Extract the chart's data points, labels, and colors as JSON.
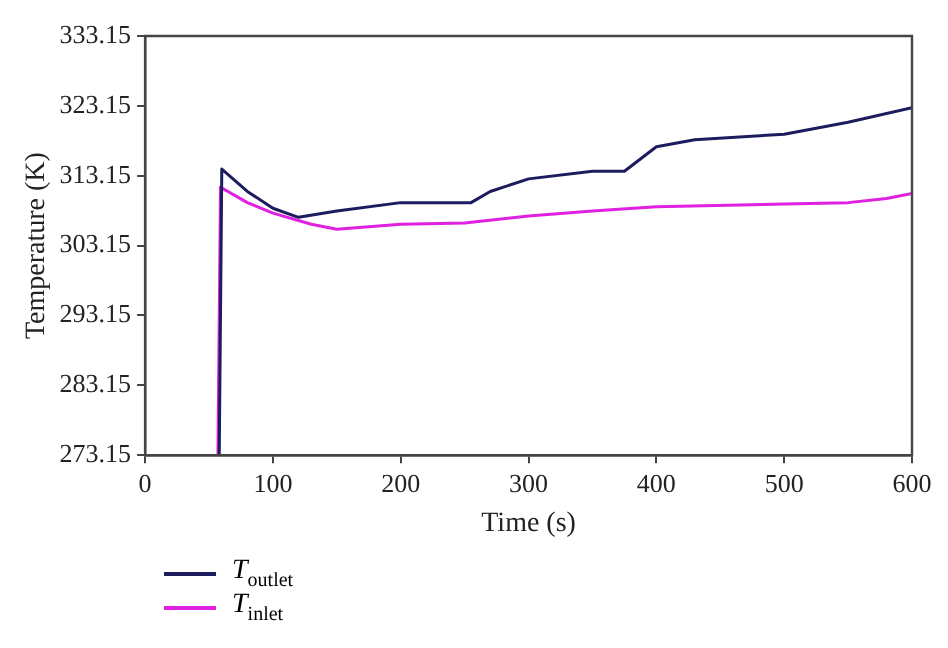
{
  "chart_data": {
    "type": "line",
    "xlabel": "Time (s)",
    "ylabel": "Temperature (K)",
    "xlim": [
      0,
      600
    ],
    "xticks": [
      0,
      100,
      200,
      300,
      400,
      500,
      600
    ],
    "ylim": [
      273.15,
      333.15
    ],
    "yticks": [
      273.15,
      283.15,
      293.15,
      303.15,
      313.15,
      323.15,
      333.15
    ],
    "grid": false,
    "legend": "bottom left",
    "marker": "none",
    "line_style": "solid",
    "series": [
      {
        "name": "T$_{outlet}$",
        "color": "#1c1c5e",
        "x": [
          58,
          60,
          80,
          100,
          120,
          150,
          200,
          255,
          270,
          300,
          350,
          375,
          400,
          430,
          500,
          550,
          600
        ],
        "values": [
          273.15,
          314.1,
          310.9,
          308.5,
          307.2,
          308.1,
          309.3,
          309.3,
          310.9,
          312.7,
          313.8,
          313.8,
          317.3,
          318.3,
          319.1,
          320.8,
          322.9
        ]
      },
      {
        "name": "T$_{inlet}$",
        "color": "#e020e0",
        "x": [
          57,
          59,
          80,
          100,
          130,
          150,
          200,
          250,
          300,
          350,
          400,
          500,
          550,
          580,
          600
        ],
        "values": [
          273.15,
          311.5,
          309.3,
          307.8,
          306.2,
          305.5,
          306.2,
          306.4,
          307.4,
          308.1,
          308.7,
          309.1,
          309.3,
          309.9,
          310.6
        ]
      }
    ]
  }
}
